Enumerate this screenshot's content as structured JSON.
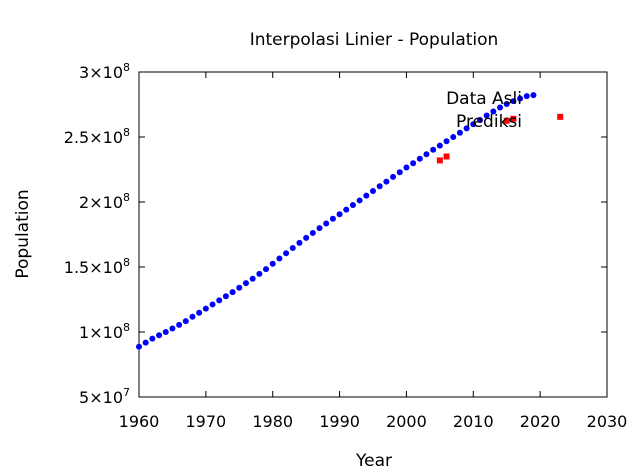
{
  "chart_data": {
    "type": "scatter",
    "title": "Interpolasi Linier - Population",
    "xlabel": "Year",
    "ylabel": "Population",
    "xlim": [
      1960,
      2030
    ],
    "ylim": [
      50000000,
      300000000
    ],
    "x_ticks": [
      1960,
      1970,
      1980,
      1990,
      2000,
      2010,
      2020,
      2030
    ],
    "y_ticks": [
      {
        "value": 50000000,
        "mantissa": "5",
        "exponent": "7"
      },
      {
        "value": 100000000,
        "mantissa": "1",
        "exponent": "8"
      },
      {
        "value": 150000000,
        "mantissa": "1.5",
        "exponent": "8"
      },
      {
        "value": 200000000,
        "mantissa": "2",
        "exponent": "8"
      },
      {
        "value": 250000000,
        "mantissa": "2.5",
        "exponent": "8"
      },
      {
        "value": 300000000,
        "mantissa": "3",
        "exponent": "8"
      }
    ],
    "tick_times": "×10",
    "grid": false,
    "legend_position": "top-right",
    "series": [
      {
        "name": "Data Asli",
        "color": "#0000ff",
        "marker": "circle",
        "x_start": 1960,
        "x_step": 1,
        "values": [
          88700000,
          91800000,
          94900000,
          97500000,
          100000000,
          102700000,
          105500000,
          108400000,
          111700000,
          114800000,
          118000000,
          121200000,
          124300000,
          127500000,
          130700000,
          134000000,
          137600000,
          141000000,
          144700000,
          148400000,
          152500000,
          156500000,
          160600000,
          164600000,
          168600000,
          172400000,
          176200000,
          179900000,
          183500000,
          187100000,
          190600000,
          194100000,
          197700000,
          201200000,
          204900000,
          208500000,
          212100000,
          215700000,
          219300000,
          222900000,
          226500000,
          229800000,
          233300000,
          236700000,
          240200000,
          243400000,
          246700000,
          250000000,
          253300000,
          256600000,
          259800000,
          263100000,
          266500000,
          269600000,
          272700000,
          275400000,
          277600000,
          279600000,
          281400000,
          282200000
        ]
      },
      {
        "name": "Prediksi",
        "color": "#ff0000",
        "marker": "square",
        "x": [
          2005,
          2006,
          2015,
          2016,
          2023
        ],
        "values": [
          232000000,
          235000000,
          262500000,
          264000000,
          265500000
        ]
      }
    ]
  }
}
